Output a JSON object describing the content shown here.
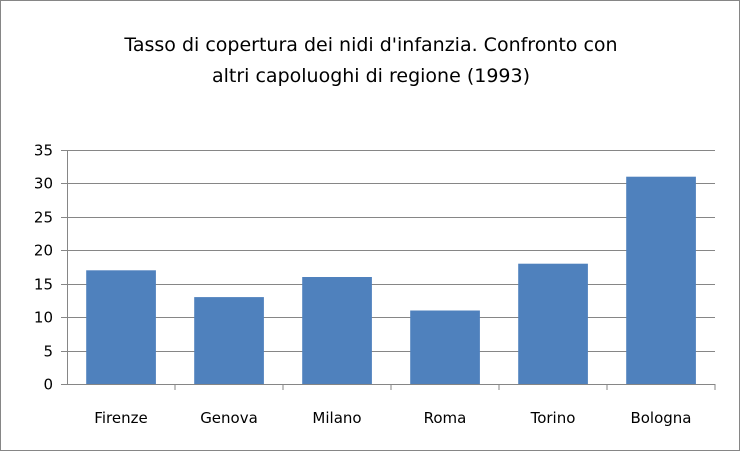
{
  "chart_data": {
    "type": "bar",
    "title_lines": [
      "Tasso di copertura dei nidi d'infanzia. Confronto con",
      "altri capoluoghi di regione (1993)"
    ],
    "categories": [
      "Firenze",
      "Genova",
      "Milano",
      "Roma",
      "Torino",
      "Bologna"
    ],
    "values": [
      17,
      13,
      16,
      11,
      18,
      31
    ],
    "ylim": [
      0,
      35
    ],
    "yticks": [
      0,
      5,
      10,
      15,
      20,
      25,
      30,
      35
    ],
    "grid": true,
    "legend": "none",
    "bar_color": "#4f81bd",
    "grid_color": "#868686"
  }
}
